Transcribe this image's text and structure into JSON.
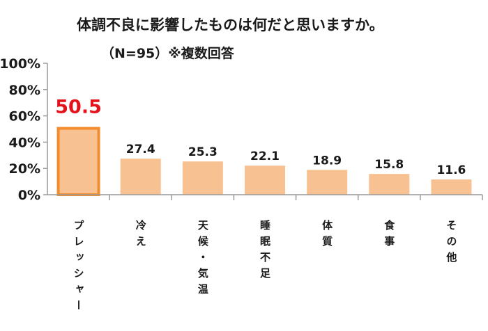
{
  "colors": {
    "bar_fill": "#f7c192",
    "highlight_border": "#f28c2c",
    "highlight_text": "#e5121c",
    "axis": "#9a9a9a",
    "text": "#1a1a1a"
  },
  "chart_data": {
    "type": "bar",
    "title": "体調不良に影響したものは何だと思いますか。",
    "subtitle": "（N=95）※複数回答",
    "categories": [
      "プレッシャー",
      "冷え",
      "天候・気温",
      "睡眠不足",
      "体質",
      "食事",
      "その他"
    ],
    "values": [
      50.5,
      27.4,
      25.3,
      22.1,
      18.9,
      15.8,
      11.6
    ],
    "value_labels": [
      "50.5",
      "27.4",
      "25.3",
      "22.1",
      "18.9",
      "15.8",
      "11.6"
    ],
    "highlight_index": 0,
    "ylim": [
      0,
      100
    ],
    "yticks": [
      0,
      20,
      40,
      60,
      80,
      100
    ],
    "ytick_labels": [
      "0%",
      "20%",
      "40%",
      "60%",
      "80%",
      "100%"
    ],
    "xlabel": "",
    "ylabel": "",
    "grid": false,
    "legend": "none"
  }
}
